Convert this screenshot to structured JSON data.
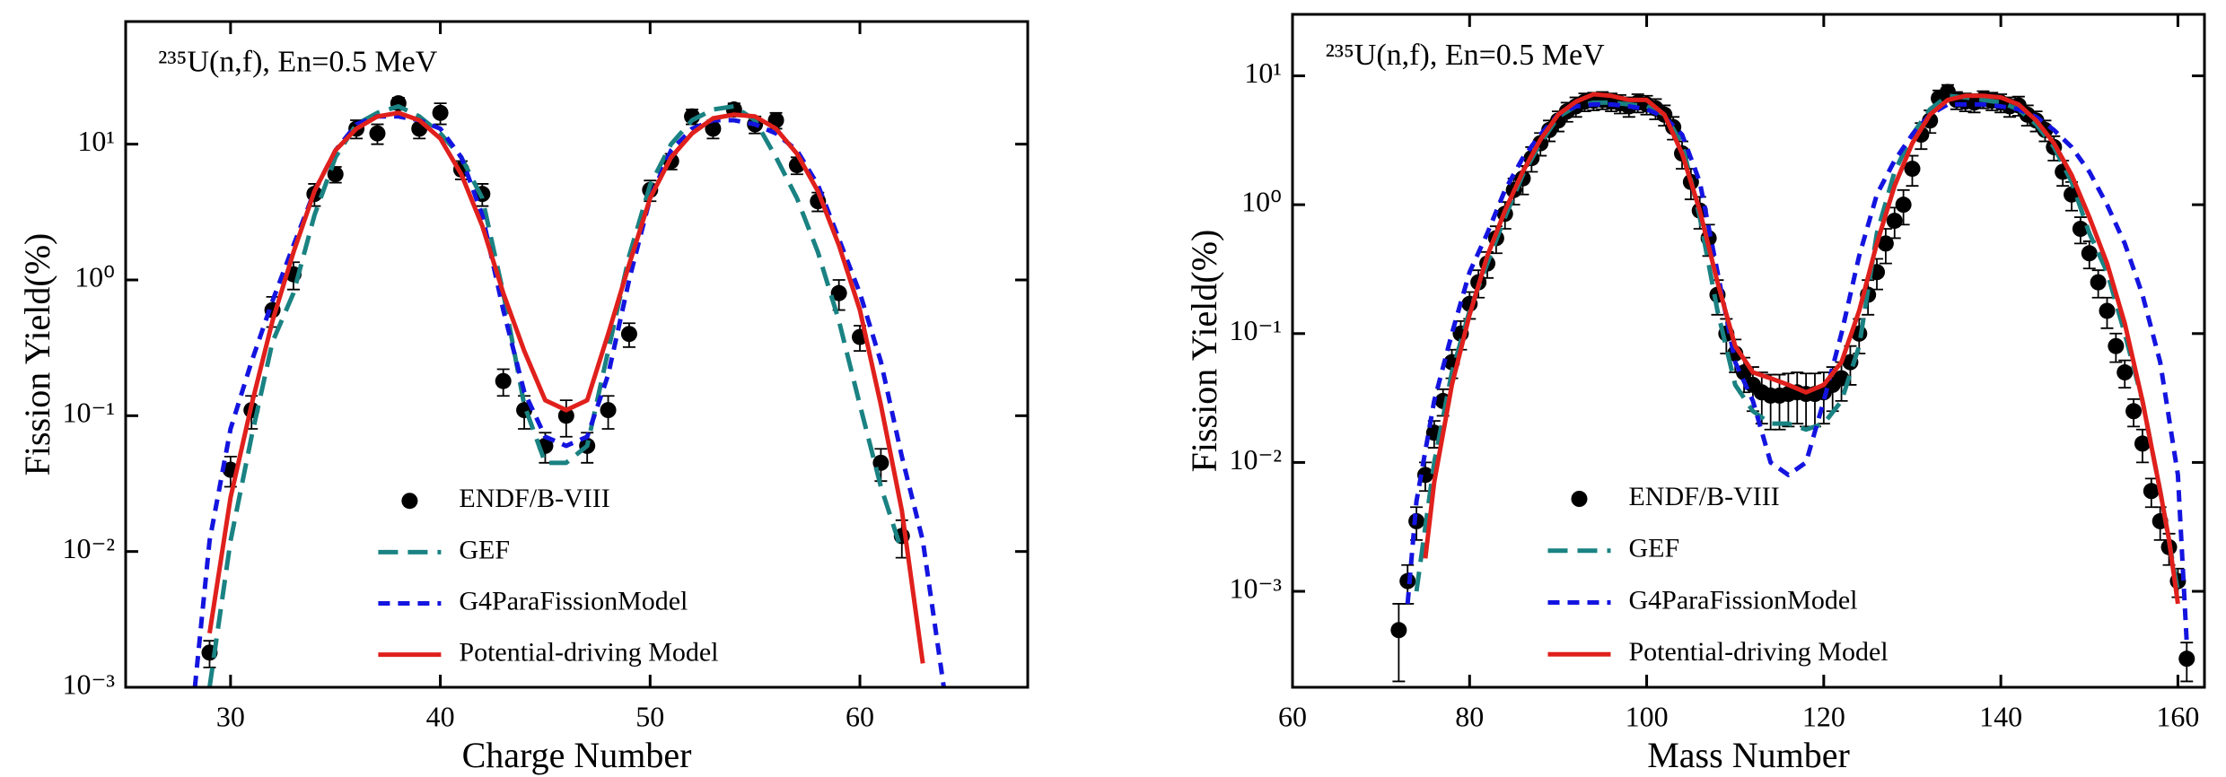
{
  "chart_data": [
    {
      "type": "line",
      "annotation": "²³⁵U(n,f), En=0.5 MeV",
      "x_label": "Charge Number",
      "y_label": "Fission Yield(%)",
      "xlim": [
        25,
        68
      ],
      "xticks": [
        30,
        40,
        50,
        60
      ],
      "ylim": [
        0.001,
        80
      ],
      "log_y": true,
      "yticks": [
        {
          "value": 0.001,
          "label": "10⁻³"
        },
        {
          "value": 0.01,
          "label": "10⁻²"
        },
        {
          "value": 0.1,
          "label": "10⁻¹"
        },
        {
          "value": 1,
          "label": "10⁰"
        },
        {
          "value": 10,
          "label": "10¹"
        }
      ],
      "legend": "lower center",
      "series": [
        {
          "name": "ENDF/B-VIII",
          "type": "scatter",
          "color": "#000000",
          "x": [
            29,
            30,
            31,
            32,
            33,
            34,
            35,
            36,
            37,
            38,
            39,
            40,
            41,
            42,
            43,
            44,
            45,
            46,
            47,
            48,
            49,
            50,
            51,
            52,
            53,
            54,
            55,
            56,
            57,
            58,
            59,
            60,
            61,
            62
          ],
          "values": [
            0.0018,
            0.04,
            0.11,
            0.6,
            1.1,
            4.3,
            6.0,
            13,
            12,
            20,
            13,
            17,
            6.5,
            4.3,
            0.18,
            0.11,
            0.06,
            0.1,
            0.06,
            0.11,
            0.4,
            4.6,
            7.5,
            16,
            13,
            18,
            14,
            15,
            7,
            3.8,
            0.8,
            0.38,
            0.045,
            0.013
          ],
          "errors": [
            0.0004,
            0.01,
            0.03,
            0.15,
            0.25,
            0.8,
            0.8,
            2,
            2,
            2,
            2,
            3,
            1,
            0.8,
            0.04,
            0.03,
            0.015,
            0.03,
            0.015,
            0.03,
            0.08,
            0.8,
            1,
            2,
            2,
            2,
            2,
            2,
            1,
            0.6,
            0.2,
            0.08,
            0.012,
            0.004
          ]
        },
        {
          "name": "GEF",
          "type": "line",
          "dash": "dashed",
          "color": "#1a8282",
          "x": [
            29,
            30,
            31,
            32,
            33,
            34,
            35,
            36,
            37,
            38,
            39,
            40,
            41,
            42,
            43,
            44,
            45,
            46,
            47,
            48,
            49,
            50,
            51,
            52,
            53,
            54,
            55,
            56,
            57,
            58,
            59,
            60,
            61,
            62
          ],
          "values": [
            0.001,
            0.012,
            0.07,
            0.35,
            0.8,
            3,
            8,
            14,
            17,
            19,
            16,
            12,
            8,
            4,
            0.8,
            0.12,
            0.045,
            0.045,
            0.06,
            0.3,
            1.5,
            5,
            10,
            15,
            18,
            19,
            15,
            8,
            4,
            1.6,
            0.5,
            0.12,
            0.03,
            0.01
          ]
        },
        {
          "name": "G4ParaFissionModel",
          "type": "line",
          "dash": "dotted",
          "color": "#1414e0",
          "x": [
            28.3,
            29,
            30,
            31,
            32,
            33,
            34,
            35,
            36,
            37,
            38,
            39,
            40,
            41,
            42,
            43,
            44,
            45,
            46,
            47,
            48,
            49,
            50,
            51,
            52,
            53,
            54,
            55,
            56,
            57,
            58,
            59,
            60,
            61,
            62,
            63,
            64
          ],
          "values": [
            0.001,
            0.012,
            0.08,
            0.25,
            0.7,
            1.8,
            4.5,
            9,
            14,
            16,
            16,
            15,
            13,
            8,
            3,
            0.6,
            0.15,
            0.07,
            0.06,
            0.07,
            0.2,
            1,
            4,
            9,
            13,
            15,
            15,
            14,
            12,
            9,
            5,
            2,
            0.8,
            0.25,
            0.05,
            0.012,
            0.001
          ]
        },
        {
          "name": "Potential-driving Model",
          "type": "line",
          "dash": "solid",
          "color": "#e0201c",
          "x": [
            29,
            30,
            31,
            32,
            33,
            34,
            35,
            36,
            37,
            38,
            39,
            40,
            41,
            42,
            43,
            44,
            45,
            46,
            47,
            48,
            49,
            50,
            51,
            52,
            53,
            54,
            55,
            56,
            57,
            58,
            59,
            60,
            61,
            62,
            63
          ],
          "values": [
            0.0025,
            0.025,
            0.12,
            0.5,
            1.6,
            4.5,
            9,
            13,
            16,
            17,
            15,
            11,
            6,
            2.5,
            0.8,
            0.3,
            0.13,
            0.11,
            0.13,
            0.4,
            1.3,
            4,
            8,
            12,
            15.5,
            16.5,
            16,
            13,
            8.5,
            4.5,
            1.8,
            0.6,
            0.12,
            0.02,
            0.0015
          ]
        }
      ]
    },
    {
      "type": "line",
      "annotation": "²³⁵U(n,f), En=0.5 MeV",
      "x_label": "Mass Number",
      "y_label": "Fission Yield(%)",
      "xlim": [
        60,
        163
      ],
      "xticks": [
        60,
        80,
        100,
        120,
        140,
        160
      ],
      "ylim": [
        0.00018,
        30
      ],
      "log_y": true,
      "yticks": [
        {
          "value": 0.001,
          "label": "10⁻³"
        },
        {
          "value": 0.01,
          "label": "10⁻²"
        },
        {
          "value": 0.1,
          "label": "10⁻¹"
        },
        {
          "value": 1,
          "label": "10⁰"
        },
        {
          "value": 10,
          "label": "10¹"
        }
      ],
      "legend": "lower center",
      "series": [
        {
          "name": "ENDF/B-VIII",
          "type": "scatter",
          "color": "#000000",
          "x": [
            72,
            73,
            74,
            75,
            76,
            77,
            78,
            79,
            80,
            81,
            82,
            83,
            84,
            85,
            86,
            87,
            88,
            89,
            90,
            91,
            92,
            93,
            94,
            95,
            96,
            97,
            98,
            99,
            100,
            101,
            102,
            103,
            104,
            105,
            106,
            107,
            108,
            109,
            110,
            111,
            112,
            113,
            114,
            115,
            116,
            117,
            118,
            119,
            120,
            121,
            122,
            123,
            124,
            125,
            126,
            127,
            128,
            129,
            130,
            131,
            132,
            133,
            134,
            135,
            136,
            137,
            138,
            139,
            140,
            141,
            142,
            143,
            144,
            145,
            146,
            147,
            148,
            149,
            150,
            151,
            152,
            153,
            154,
            155,
            156,
            157,
            158,
            159,
            160,
            161
          ],
          "values": [
            0.0005,
            0.0012,
            0.0035,
            0.008,
            0.017,
            0.03,
            0.06,
            0.1,
            0.17,
            0.25,
            0.35,
            0.55,
            0.85,
            1.3,
            1.6,
            2.3,
            3.0,
            3.8,
            4.5,
            5.3,
            5.8,
            6.3,
            6.4,
            6.5,
            6.3,
            6.1,
            5.8,
            6.2,
            6.0,
            5.6,
            5.0,
            4.0,
            2.5,
            1.5,
            0.9,
            0.55,
            0.2,
            0.1,
            0.07,
            0.05,
            0.04,
            0.035,
            0.033,
            0.033,
            0.034,
            0.035,
            0.034,
            0.034,
            0.035,
            0.04,
            0.045,
            0.06,
            0.1,
            0.2,
            0.3,
            0.5,
            0.75,
            1.0,
            1.9,
            3.5,
            4.5,
            6.7,
            7.5,
            6.5,
            6.3,
            6.2,
            6.6,
            6.4,
            6.2,
            5.8,
            5.9,
            5.0,
            4.5,
            3.8,
            2.8,
            1.8,
            1.2,
            0.65,
            0.42,
            0.25,
            0.15,
            0.08,
            0.05,
            0.025,
            0.014,
            0.006,
            0.0035,
            0.0022,
            0.0012,
            0.0003
          ],
          "errors": [
            0.0003,
            0.0004,
            0.001,
            0.002,
            0.004,
            0.007,
            0.015,
            0.025,
            0.04,
            0.06,
            0.08,
            0.13,
            0.2,
            0.3,
            0.4,
            0.5,
            0.6,
            0.7,
            0.8,
            0.9,
            1,
            1,
            1,
            1,
            1,
            1,
            1,
            1,
            1,
            1,
            0.9,
            0.8,
            0.6,
            0.4,
            0.25,
            0.15,
            0.06,
            0.03,
            0.02,
            0.015,
            0.015,
            0.015,
            0.015,
            0.015,
            0.015,
            0.015,
            0.015,
            0.015,
            0.015,
            0.015,
            0.015,
            0.02,
            0.03,
            0.06,
            0.08,
            0.15,
            0.2,
            0.3,
            0.5,
            0.8,
            0.9,
            1,
            1,
            1,
            1,
            1,
            1,
            1,
            1,
            1,
            1,
            0.9,
            0.8,
            0.7,
            0.6,
            0.4,
            0.3,
            0.15,
            0.1,
            0.06,
            0.04,
            0.02,
            0.012,
            0.006,
            0.004,
            0.0015,
            0.001,
            0.0006,
            0.0003,
            0.0001
          ]
        },
        {
          "name": "GEF",
          "type": "line",
          "dash": "dashed",
          "color": "#1a8282",
          "x": [
            74,
            76,
            78,
            80,
            82,
            84,
            86,
            88,
            90,
            92,
            94,
            96,
            98,
            100,
            102,
            104,
            106,
            108,
            110,
            112,
            114,
            116,
            118,
            120,
            122,
            124,
            126,
            128,
            130,
            132,
            134,
            136,
            138,
            140,
            142,
            144,
            146,
            148,
            150,
            152,
            154,
            156,
            158,
            160
          ],
          "values": [
            0.001,
            0.01,
            0.05,
            0.15,
            0.35,
            0.8,
            1.7,
            3,
            4.8,
            5.8,
            6.2,
            6.2,
            6,
            5.8,
            5,
            3,
            0.8,
            0.15,
            0.04,
            0.025,
            0.02,
            0.02,
            0.018,
            0.02,
            0.03,
            0.08,
            0.6,
            1.8,
            3.5,
            5.5,
            7,
            6.8,
            6.5,
            6.2,
            5.5,
            4.2,
            2.8,
            1.5,
            0.6,
            0.3,
            0.1,
            0.03,
            0.006,
            0.001
          ]
        },
        {
          "name": "G4ParaFissionModel",
          "type": "line",
          "dash": "dotted",
          "color": "#1414e0",
          "x": [
            73,
            74,
            76,
            78,
            80,
            82,
            84,
            86,
            88,
            90,
            92,
            94,
            96,
            98,
            100,
            102,
            104,
            106,
            108,
            110,
            112,
            114,
            116,
            118,
            120,
            122,
            124,
            126,
            128,
            130,
            132,
            134,
            136,
            138,
            140,
            142,
            144,
            146,
            148,
            150,
            152,
            154,
            156,
            158,
            160,
            161
          ],
          "values": [
            0.0008,
            0.005,
            0.03,
            0.1,
            0.3,
            0.6,
            1.3,
            2.3,
            3.5,
            5,
            5.8,
            6,
            6,
            5.8,
            5.5,
            4.8,
            3.5,
            1.5,
            0.3,
            0.06,
            0.03,
            0.01,
            0.008,
            0.01,
            0.03,
            0.1,
            0.4,
            1.2,
            2.2,
            3.5,
            5,
            6,
            6,
            6,
            5.8,
            5.5,
            4.8,
            3.8,
            2.8,
            1.8,
            1,
            0.5,
            0.2,
            0.06,
            0.008,
            0.0004
          ]
        },
        {
          "name": "Potential-driving Model",
          "type": "line",
          "dash": "solid",
          "color": "#e0201c",
          "x": [
            75,
            76,
            78,
            80,
            82,
            84,
            86,
            88,
            90,
            92,
            94,
            96,
            98,
            100,
            102,
            104,
            106,
            108,
            110,
            112,
            114,
            116,
            118,
            120,
            122,
            124,
            126,
            128,
            130,
            132,
            134,
            136,
            138,
            140,
            142,
            144,
            146,
            148,
            150,
            152,
            154,
            156,
            158,
            159,
            160
          ],
          "values": [
            0.0018,
            0.007,
            0.04,
            0.14,
            0.4,
            0.9,
            1.8,
            3.2,
            5,
            6.3,
            7.2,
            7,
            6.5,
            6.5,
            5,
            2.5,
            0.9,
            0.25,
            0.08,
            0.05,
            0.045,
            0.04,
            0.035,
            0.04,
            0.06,
            0.15,
            0.5,
            1.4,
            3,
            5,
            6.5,
            7,
            7,
            6.8,
            6,
            4.5,
            3,
            1.7,
            0.8,
            0.35,
            0.12,
            0.03,
            0.006,
            0.0025,
            0.0008
          ]
        }
      ]
    }
  ]
}
